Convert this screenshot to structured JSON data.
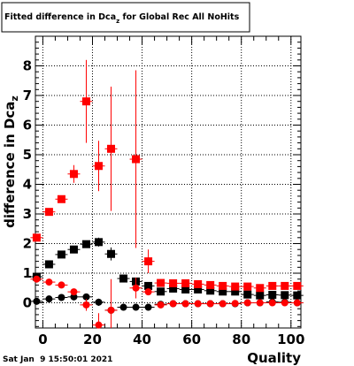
{
  "chart_data": {
    "type": "scatter",
    "title": "Fitted difference in Dca",
    "title_sub": "z",
    "title_suffix": " for Global Rec All NoHits",
    "ylabel": "difference in Dca",
    "ylabel_sub": "z",
    "xlabel": "Quality",
    "xlim": [
      -3,
      104
    ],
    "ylim": [
      -0.85,
      9.0
    ],
    "xticks": [
      0,
      20,
      40,
      60,
      80,
      100
    ],
    "yticks": [
      0,
      1,
      2,
      3,
      4,
      5,
      6,
      7,
      8
    ],
    "grid": true,
    "timestamp": "Sat Jan  9 15:50:01 2021",
    "series": [
      {
        "marker": "square",
        "color": "#000000",
        "points": [
          {
            "x": -2.5,
            "y": 0.88,
            "err": 0.06
          },
          {
            "x": 2.5,
            "y": 1.3,
            "err": 0.06
          },
          {
            "x": 7.5,
            "y": 1.63,
            "err": 0.08
          },
          {
            "x": 12.5,
            "y": 1.8,
            "err": 0.09
          },
          {
            "x": 17.5,
            "y": 1.98,
            "err": 0.1
          },
          {
            "x": 22.5,
            "y": 2.05,
            "err": 0.15
          },
          {
            "x": 27.5,
            "y": 1.65,
            "err": 0.22
          },
          {
            "x": 32.5,
            "y": 0.82,
            "err": 0.1
          },
          {
            "x": 37.5,
            "y": 0.72,
            "err": 0.1
          },
          {
            "x": 42.5,
            "y": 0.57,
            "err": 0.08
          },
          {
            "x": 47.5,
            "y": 0.38,
            "err": 0.05
          },
          {
            "x": 52.5,
            "y": 0.48,
            "err": 0.05
          },
          {
            "x": 57.5,
            "y": 0.45,
            "err": 0.04
          },
          {
            "x": 62.5,
            "y": 0.45,
            "err": 0.04
          },
          {
            "x": 67.5,
            "y": 0.41,
            "err": 0.04
          },
          {
            "x": 72.5,
            "y": 0.38,
            "err": 0.04
          },
          {
            "x": 77.5,
            "y": 0.38,
            "err": 0.03
          },
          {
            "x": 82.5,
            "y": 0.28,
            "err": 0.03
          },
          {
            "x": 87.5,
            "y": 0.25,
            "err": 0.03
          },
          {
            "x": 92.5,
            "y": 0.27,
            "err": 0.03
          },
          {
            "x": 97.5,
            "y": 0.26,
            "err": 0.03
          },
          {
            "x": 102.5,
            "y": 0.25,
            "err": 0.03
          }
        ]
      },
      {
        "marker": "square",
        "color": "#ff0000",
        "points": [
          {
            "x": -2.5,
            "y": 2.2,
            "err": 0.08
          },
          {
            "x": 2.5,
            "y": 3.07,
            "err": 0.1
          },
          {
            "x": 7.5,
            "y": 3.5,
            "err": 0.12
          },
          {
            "x": 12.5,
            "y": 4.35,
            "err": 0.3
          },
          {
            "x": 17.5,
            "y": 6.8,
            "err": 1.4
          },
          {
            "x": 22.5,
            "y": 4.62,
            "err": 0.85
          },
          {
            "x": 27.5,
            "y": 5.2,
            "err": 2.1
          },
          {
            "x": 37.5,
            "y": 4.85,
            "err": 3.0
          },
          {
            "x": 42.5,
            "y": 1.4,
            "err": 0.4
          },
          {
            "x": 47.5,
            "y": 0.67,
            "err": 0.08
          },
          {
            "x": 52.5,
            "y": 0.66,
            "err": 0.05
          },
          {
            "x": 57.5,
            "y": 0.66,
            "err": 0.05
          },
          {
            "x": 62.5,
            "y": 0.63,
            "err": 0.04
          },
          {
            "x": 67.5,
            "y": 0.6,
            "err": 0.04
          },
          {
            "x": 72.5,
            "y": 0.57,
            "err": 0.04
          },
          {
            "x": 77.5,
            "y": 0.55,
            "err": 0.04
          },
          {
            "x": 82.5,
            "y": 0.55,
            "err": 0.03
          },
          {
            "x": 87.5,
            "y": 0.5,
            "err": 0.03
          },
          {
            "x": 92.5,
            "y": 0.57,
            "err": 0.03
          },
          {
            "x": 97.5,
            "y": 0.57,
            "err": 0.03
          },
          {
            "x": 102.5,
            "y": 0.57,
            "err": 0.03
          }
        ]
      },
      {
        "marker": "circle",
        "color": "#000000",
        "points": [
          {
            "x": -2.5,
            "y": 0.05,
            "err": 0.05
          },
          {
            "x": 2.5,
            "y": 0.13,
            "err": 0.05
          },
          {
            "x": 7.5,
            "y": 0.18,
            "err": 0.06
          },
          {
            "x": 12.5,
            "y": 0.2,
            "err": 0.08
          },
          {
            "x": 17.5,
            "y": 0.2,
            "err": 0.1
          },
          {
            "x": 22.5,
            "y": 0.02,
            "err": 0.12
          },
          {
            "x": 27.5,
            "y": -0.25,
            "err": 0.15
          },
          {
            "x": 32.5,
            "y": -0.15,
            "err": 0.08
          },
          {
            "x": 37.5,
            "y": -0.15,
            "err": 0.08
          },
          {
            "x": 42.5,
            "y": -0.15,
            "err": 0.06
          },
          {
            "x": 47.5,
            "y": -0.05,
            "err": 0.04
          },
          {
            "x": 52.5,
            "y": -0.03,
            "err": 0.03
          },
          {
            "x": 57.5,
            "y": -0.03,
            "err": 0.03
          },
          {
            "x": 62.5,
            "y": -0.03,
            "err": 0.03
          },
          {
            "x": 67.5,
            "y": -0.03,
            "err": 0.03
          },
          {
            "x": 72.5,
            "y": -0.03,
            "err": 0.03
          },
          {
            "x": 77.5,
            "y": -0.03,
            "err": 0.03
          },
          {
            "x": 82.5,
            "y": 0.0,
            "err": 0.03
          },
          {
            "x": 87.5,
            "y": 0.0,
            "err": 0.03
          },
          {
            "x": 92.5,
            "y": 0.03,
            "err": 0.03
          },
          {
            "x": 97.5,
            "y": 0.02,
            "err": 0.03
          },
          {
            "x": 102.5,
            "y": 0.0,
            "err": 0.03
          }
        ]
      },
      {
        "marker": "circle",
        "color": "#ff0000",
        "points": [
          {
            "x": -2.5,
            "y": 0.8,
            "err": 0.06
          },
          {
            "x": 2.5,
            "y": 0.7,
            "err": 0.06
          },
          {
            "x": 7.5,
            "y": 0.6,
            "err": 0.07
          },
          {
            "x": 12.5,
            "y": 0.37,
            "err": 0.1
          },
          {
            "x": 17.5,
            "y": -0.07,
            "err": 0.2
          },
          {
            "x": 22.5,
            "y": -0.75,
            "err": 0.4
          },
          {
            "x": 27.5,
            "y": -0.25,
            "err": 1.05
          },
          {
            "x": 37.5,
            "y": 0.5,
            "err": 0.35
          },
          {
            "x": 42.5,
            "y": 0.37,
            "err": 0.1
          },
          {
            "x": 47.5,
            "y": -0.07,
            "err": 0.05
          },
          {
            "x": 52.5,
            "y": -0.03,
            "err": 0.04
          },
          {
            "x": 57.5,
            "y": -0.03,
            "err": 0.04
          },
          {
            "x": 62.5,
            "y": -0.03,
            "err": 0.03
          },
          {
            "x": 67.5,
            "y": -0.03,
            "err": 0.03
          },
          {
            "x": 72.5,
            "y": -0.03,
            "err": 0.03
          },
          {
            "x": 77.5,
            "y": -0.02,
            "err": 0.03
          },
          {
            "x": 82.5,
            "y": 0.0,
            "err": 0.03
          },
          {
            "x": 87.5,
            "y": 0.0,
            "err": 0.03
          },
          {
            "x": 92.5,
            "y": 0.0,
            "err": 0.03
          },
          {
            "x": 97.5,
            "y": 0.0,
            "err": 0.03
          },
          {
            "x": 102.5,
            "y": 0.0,
            "err": 0.03
          }
        ]
      }
    ]
  }
}
